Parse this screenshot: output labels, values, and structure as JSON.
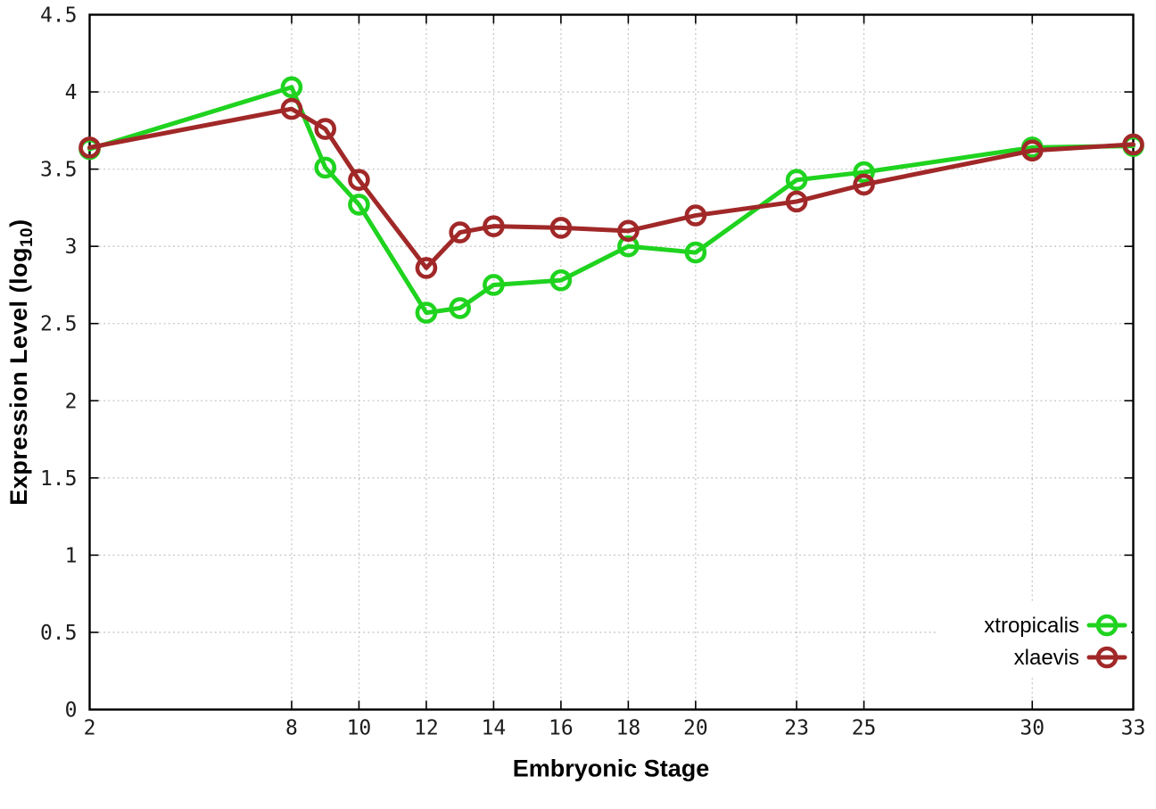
{
  "chart_data": {
    "type": "line",
    "title": "",
    "xlabel": "Embryonic Stage",
    "ylabel": {
      "text": "Expression Level (log",
      "subscript": "10",
      "suffix": ")"
    },
    "xlim": [
      2,
      33
    ],
    "ylim": [
      0,
      4.5
    ],
    "xticks": [
      2,
      8,
      10,
      12,
      14,
      16,
      18,
      20,
      23,
      25,
      30,
      33
    ],
    "yticks": [
      0,
      0.5,
      1,
      1.5,
      2,
      2.5,
      3,
      3.5,
      4,
      4.5
    ],
    "grid": true,
    "legend_position": "bottom-right",
    "x": [
      2,
      8,
      9,
      10,
      12,
      13,
      14,
      16,
      18,
      20,
      23,
      25,
      30,
      33
    ],
    "series": [
      {
        "name": "xtropicalis",
        "color": "#1fd31f",
        "values": [
          3.63,
          4.03,
          3.51,
          3.27,
          2.57,
          2.6,
          2.75,
          2.78,
          3.0,
          2.96,
          3.43,
          3.48,
          3.64,
          3.65
        ]
      },
      {
        "name": "xlaevis",
        "color": "#a12828",
        "values": [
          3.64,
          3.89,
          3.76,
          3.43,
          2.86,
          3.09,
          3.13,
          3.12,
          3.1,
          3.2,
          3.29,
          3.4,
          3.62,
          3.66
        ]
      }
    ],
    "colors": {
      "axis": "#000000",
      "grid": "#c2c2c2",
      "tick_text": "#1c1c1c",
      "background": "#ffffff"
    }
  }
}
